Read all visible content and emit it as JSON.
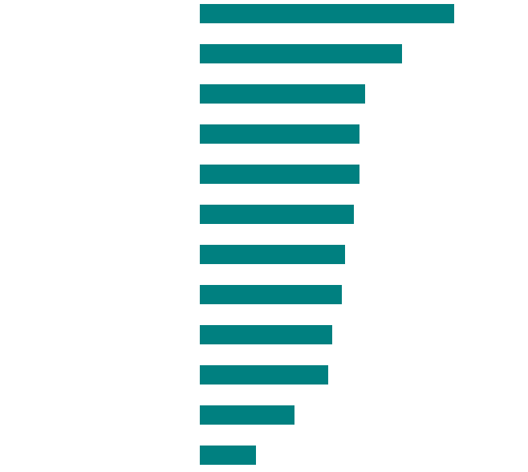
{
  "chart_data": {
    "type": "barh",
    "values": [
      317,
      252,
      206,
      199,
      199,
      192,
      181,
      177,
      165,
      160,
      118,
      70
    ],
    "color": "#008080",
    "xlim": [
      0,
      409
    ]
  }
}
